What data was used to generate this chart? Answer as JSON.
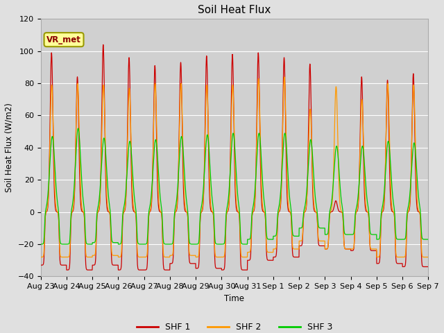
{
  "title": "Soil Heat Flux",
  "ylabel": "Soil Heat Flux (W/m2)",
  "xlabel": "Time",
  "ylim": [
    -40,
    120
  ],
  "background_color": "#e0e0e0",
  "plot_bg_color": "#d0d0d0",
  "grid_color": "#ffffff",
  "annotation_label": "VR_met",
  "annotation_box_color": "#ffff99",
  "annotation_border_color": "#999900",
  "legend_entries": [
    "SHF 1",
    "SHF 2",
    "SHF 3"
  ],
  "line_colors": [
    "#cc0000",
    "#ff9900",
    "#00cc00"
  ],
  "xtick_labels": [
    "Aug 23",
    "Aug 24",
    "Aug 25",
    "Aug 26",
    "Aug 27",
    "Aug 28",
    "Aug 29",
    "Aug 30",
    "Aug 31",
    "Sep 1",
    "Sep 2",
    "Sep 3",
    "Sep 4",
    "Sep 5",
    "Sep 6",
    "Sep 7"
  ],
  "num_days": 15,
  "shf1_peaks": [
    99,
    84,
    104,
    96,
    91,
    93,
    97,
    98,
    99,
    96,
    92,
    7,
    84,
    82,
    86
  ],
  "shf2_peaks": [
    79,
    80,
    79,
    77,
    80,
    80,
    79,
    79,
    83,
    84,
    64,
    78,
    70,
    80,
    79
  ],
  "shf3_peaks": [
    47,
    52,
    46,
    44,
    45,
    47,
    48,
    49,
    49,
    49,
    45,
    41,
    41,
    44,
    43
  ],
  "shf1_nights": [
    -33,
    -36,
    -33,
    -36,
    -36,
    -32,
    -35,
    -36,
    -30,
    -28,
    -21,
    -23,
    -24,
    -32,
    -34
  ],
  "shf2_nights": [
    -28,
    -28,
    -27,
    -28,
    -28,
    -27,
    -28,
    -28,
    -25,
    -23,
    -18,
    -23,
    -23,
    -28,
    -28
  ],
  "shf3_nights": [
    -20,
    -20,
    -19,
    -20,
    -20,
    -20,
    -20,
    -20,
    -17,
    -15,
    -10,
    -14,
    -14,
    -17,
    -17
  ]
}
